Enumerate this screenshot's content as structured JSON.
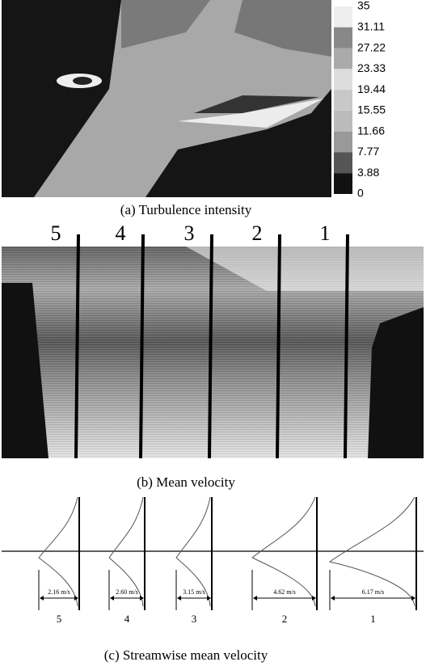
{
  "panel_a": {
    "colorbar_labels": [
      35,
      31.11,
      27.22,
      23.33,
      19.44,
      15.55,
      11.66,
      7.77,
      3.88,
      0
    ],
    "caption": "(a)  Turbulence intensity"
  },
  "panel_b": {
    "line_labels": [
      "5",
      "4",
      "3",
      "2",
      "1"
    ],
    "caption": "(b)  Mean velocity"
  },
  "panel_c": {
    "profiles": [
      {
        "velocity": "2.16 m/s",
        "label": "5"
      },
      {
        "velocity": "2.60 m/s",
        "label": "4"
      },
      {
        "velocity": "3.15 m/s",
        "label": "3"
      },
      {
        "velocity": "4.62 m/s",
        "label": "2"
      },
      {
        "velocity": "6.17 m/s",
        "label": "1"
      }
    ],
    "caption": "(c)  Streamwise mean velocity"
  }
}
